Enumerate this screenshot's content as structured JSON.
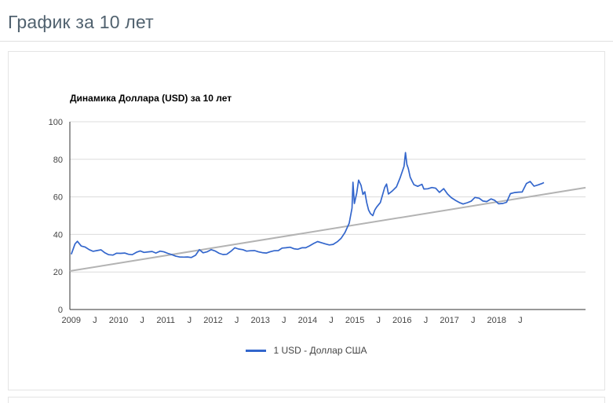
{
  "page": {
    "title": "График за 10 лет"
  },
  "chart_data": {
    "type": "line",
    "title": "Динамика Доллара (USD) за 10 лет",
    "xlabel": "",
    "ylabel": "",
    "xlim": [
      2008.97,
      2019.88
    ],
    "ylim": [
      0,
      100
    ],
    "grid": true,
    "legend_position": "bottom",
    "y_ticks": [
      0,
      20,
      40,
      60,
      80,
      100
    ],
    "x_ticks": [
      {
        "x": 2009,
        "label": "2009"
      },
      {
        "x": 2009.5,
        "label": "J"
      },
      {
        "x": 2010,
        "label": "2010"
      },
      {
        "x": 2010.5,
        "label": "J"
      },
      {
        "x": 2011,
        "label": "2011"
      },
      {
        "x": 2011.5,
        "label": "J"
      },
      {
        "x": 2012,
        "label": "2012"
      },
      {
        "x": 2012.5,
        "label": "J"
      },
      {
        "x": 2013,
        "label": "2013"
      },
      {
        "x": 2013.5,
        "label": "J"
      },
      {
        "x": 2014,
        "label": "2014"
      },
      {
        "x": 2014.5,
        "label": "J"
      },
      {
        "x": 2015,
        "label": "2015"
      },
      {
        "x": 2015.5,
        "label": "J"
      },
      {
        "x": 2016,
        "label": "2016"
      },
      {
        "x": 2016.5,
        "label": "J"
      },
      {
        "x": 2017,
        "label": "2017"
      },
      {
        "x": 2017.5,
        "label": "J"
      },
      {
        "x": 2018,
        "label": "2018"
      },
      {
        "x": 2018.5,
        "label": "J"
      }
    ],
    "series": [
      {
        "name": "1 USD - Доллар США",
        "color": "#3366cc",
        "points": [
          [
            2009.0,
            29.4
          ],
          [
            2009.08,
            35.0
          ],
          [
            2009.13,
            36.3
          ],
          [
            2009.21,
            33.8
          ],
          [
            2009.29,
            33.3
          ],
          [
            2009.38,
            31.9
          ],
          [
            2009.46,
            31.0
          ],
          [
            2009.54,
            31.4
          ],
          [
            2009.63,
            31.8
          ],
          [
            2009.71,
            30.2
          ],
          [
            2009.79,
            29.2
          ],
          [
            2009.88,
            29.0
          ],
          [
            2009.96,
            30.0
          ],
          [
            2010.04,
            29.9
          ],
          [
            2010.13,
            30.1
          ],
          [
            2010.21,
            29.4
          ],
          [
            2010.29,
            29.2
          ],
          [
            2010.38,
            30.5
          ],
          [
            2010.46,
            31.2
          ],
          [
            2010.54,
            30.4
          ],
          [
            2010.63,
            30.7
          ],
          [
            2010.71,
            30.9
          ],
          [
            2010.79,
            30.1
          ],
          [
            2010.88,
            31.1
          ],
          [
            2010.96,
            30.7
          ],
          [
            2011.04,
            29.9
          ],
          [
            2011.13,
            29.2
          ],
          [
            2011.21,
            28.4
          ],
          [
            2011.29,
            28.0
          ],
          [
            2011.38,
            27.9
          ],
          [
            2011.46,
            28.0
          ],
          [
            2011.54,
            27.7
          ],
          [
            2011.63,
            28.9
          ],
          [
            2011.71,
            31.9
          ],
          [
            2011.79,
            30.2
          ],
          [
            2011.88,
            30.8
          ],
          [
            2011.96,
            31.9
          ],
          [
            2012.04,
            31.2
          ],
          [
            2012.13,
            29.9
          ],
          [
            2012.21,
            29.3
          ],
          [
            2012.29,
            29.4
          ],
          [
            2012.38,
            31.1
          ],
          [
            2012.46,
            32.9
          ],
          [
            2012.54,
            32.2
          ],
          [
            2012.63,
            31.9
          ],
          [
            2012.71,
            31.1
          ],
          [
            2012.79,
            31.3
          ],
          [
            2012.88,
            31.4
          ],
          [
            2012.96,
            30.7
          ],
          [
            2013.04,
            30.3
          ],
          [
            2013.13,
            30.1
          ],
          [
            2013.21,
            30.8
          ],
          [
            2013.29,
            31.3
          ],
          [
            2013.38,
            31.4
          ],
          [
            2013.46,
            32.7
          ],
          [
            2013.54,
            32.9
          ],
          [
            2013.63,
            33.2
          ],
          [
            2013.71,
            32.4
          ],
          [
            2013.79,
            32.1
          ],
          [
            2013.88,
            32.9
          ],
          [
            2013.96,
            32.9
          ],
          [
            2014.04,
            33.9
          ],
          [
            2014.13,
            35.2
          ],
          [
            2014.21,
            36.2
          ],
          [
            2014.29,
            35.6
          ],
          [
            2014.38,
            34.9
          ],
          [
            2014.46,
            34.4
          ],
          [
            2014.54,
            34.7
          ],
          [
            2014.63,
            36.1
          ],
          [
            2014.71,
            38.0
          ],
          [
            2014.79,
            41.0
          ],
          [
            2014.88,
            46.0
          ],
          [
            2014.94,
            54.0
          ],
          [
            2014.96,
            67.8
          ],
          [
            2014.99,
            56.5
          ],
          [
            2015.04,
            62.0
          ],
          [
            2015.08,
            68.9
          ],
          [
            2015.13,
            66.1
          ],
          [
            2015.17,
            61.3
          ],
          [
            2015.21,
            62.7
          ],
          [
            2015.25,
            57.0
          ],
          [
            2015.29,
            53.0
          ],
          [
            2015.33,
            51.1
          ],
          [
            2015.38,
            50.0
          ],
          [
            2015.42,
            52.9
          ],
          [
            2015.46,
            54.5
          ],
          [
            2015.54,
            57.0
          ],
          [
            2015.63,
            65.0
          ],
          [
            2015.67,
            66.8
          ],
          [
            2015.71,
            61.5
          ],
          [
            2015.79,
            63.1
          ],
          [
            2015.88,
            65.3
          ],
          [
            2015.96,
            70.3
          ],
          [
            2016.04,
            76.3
          ],
          [
            2016.07,
            83.6
          ],
          [
            2016.1,
            77.3
          ],
          [
            2016.13,
            75.1
          ],
          [
            2016.17,
            70.5
          ],
          [
            2016.21,
            68.4
          ],
          [
            2016.25,
            66.5
          ],
          [
            2016.33,
            65.6
          ],
          [
            2016.42,
            66.7
          ],
          [
            2016.46,
            64.2
          ],
          [
            2016.54,
            64.3
          ],
          [
            2016.63,
            65.0
          ],
          [
            2016.71,
            64.6
          ],
          [
            2016.79,
            62.4
          ],
          [
            2016.88,
            64.4
          ],
          [
            2016.96,
            61.5
          ],
          [
            2017.04,
            59.6
          ],
          [
            2017.13,
            58.1
          ],
          [
            2017.21,
            57.0
          ],
          [
            2017.29,
            56.2
          ],
          [
            2017.38,
            56.9
          ],
          [
            2017.46,
            57.7
          ],
          [
            2017.54,
            59.7
          ],
          [
            2017.63,
            59.3
          ],
          [
            2017.71,
            57.8
          ],
          [
            2017.79,
            57.5
          ],
          [
            2017.88,
            58.9
          ],
          [
            2017.96,
            58.1
          ],
          [
            2018.04,
            56.3
          ],
          [
            2018.13,
            56.5
          ],
          [
            2018.21,
            57.1
          ],
          [
            2018.29,
            61.7
          ],
          [
            2018.38,
            62.3
          ],
          [
            2018.46,
            62.5
          ],
          [
            2018.54,
            62.6
          ],
          [
            2018.63,
            67.1
          ],
          [
            2018.71,
            68.2
          ],
          [
            2018.79,
            65.7
          ],
          [
            2018.88,
            66.4
          ],
          [
            2018.96,
            67.1
          ],
          [
            2019.0,
            67.6
          ]
        ]
      }
    ],
    "trend": {
      "color": "#b3b3b3",
      "points": [
        [
          2008.97,
          20.5
        ],
        [
          2019.88,
          64.9
        ]
      ]
    },
    "colors": {
      "grid": "#dcdcdc",
      "axis": "#333333",
      "axis_text": "#444444"
    }
  }
}
